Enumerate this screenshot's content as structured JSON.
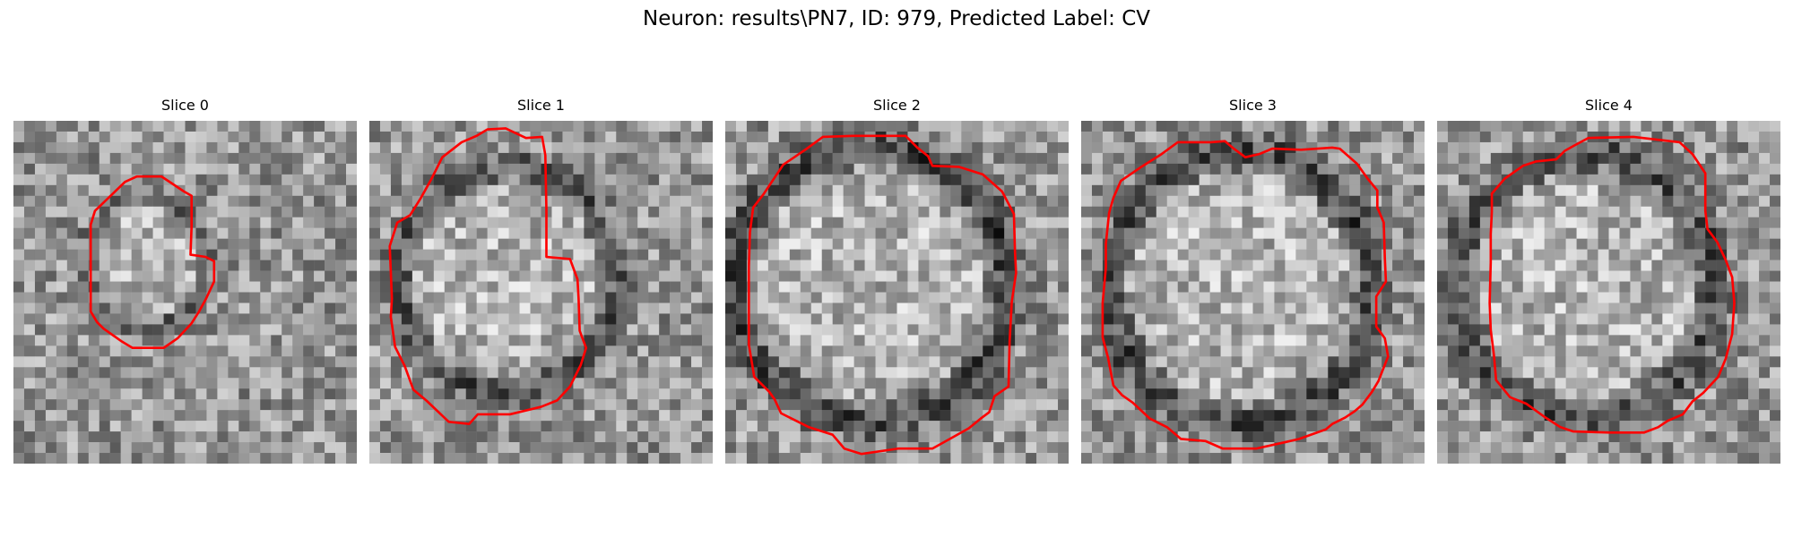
{
  "figure": {
    "title": "Neuron: results\\PN7, ID: 979, Predicted Label: CV",
    "contour_color": "#ff0000"
  },
  "panels": [
    {
      "label": "Slice 0",
      "seed": 11,
      "ring": {
        "cx": 12.4,
        "cy": 13.2,
        "rx": 5.6,
        "ry": 6.3,
        "strength": 55
      },
      "contour": [
        [
          7.6,
          8.4
        ],
        [
          10.4,
          5.7
        ],
        [
          11.5,
          5.2
        ],
        [
          13.8,
          5.2
        ],
        [
          14.4,
          5.6
        ],
        [
          15.9,
          6.6
        ],
        [
          16.6,
          7.0
        ],
        [
          16.6,
          9.9
        ],
        [
          16.5,
          12.5
        ],
        [
          17.9,
          12.7
        ],
        [
          18.7,
          13.1
        ],
        [
          18.7,
          15.0
        ],
        [
          17.9,
          16.7
        ],
        [
          17.3,
          17.8
        ],
        [
          16.6,
          18.9
        ],
        [
          15.3,
          20.3
        ],
        [
          14.0,
          21.2
        ],
        [
          12.3,
          21.2
        ],
        [
          11.1,
          21.2
        ],
        [
          10.1,
          20.6
        ],
        [
          8.4,
          19.4
        ],
        [
          7.8,
          18.8
        ],
        [
          7.2,
          17.8
        ],
        [
          7.2,
          13.2
        ],
        [
          7.2,
          9.7
        ]
      ]
    },
    {
      "label": "Slice 1",
      "seed": 23,
      "ring": {
        "cx": 12.8,
        "cy": 14.8,
        "rx": 10.0,
        "ry": 10.6,
        "strength": 65
      },
      "contour": [
        [
          3.8,
          8.8
        ],
        [
          4.8,
          7.2
        ],
        [
          5.8,
          5.4
        ],
        [
          6.8,
          3.4
        ],
        [
          8.6,
          2.0
        ],
        [
          10.0,
          1.4
        ],
        [
          11.0,
          0.8
        ],
        [
          12.7,
          0.7
        ],
        [
          14.6,
          1.6
        ],
        [
          16.1,
          1.5
        ],
        [
          16.4,
          3.2
        ],
        [
          16.5,
          8.3
        ],
        [
          16.5,
          12.7
        ],
        [
          18.7,
          12.9
        ],
        [
          19.4,
          14.8
        ],
        [
          19.5,
          16.6
        ],
        [
          19.6,
          19.6
        ],
        [
          20.2,
          21.2
        ],
        [
          19.7,
          22.8
        ],
        [
          18.7,
          24.8
        ],
        [
          17.5,
          26.1
        ],
        [
          16.0,
          26.7
        ],
        [
          13.1,
          27.4
        ],
        [
          10.1,
          27.4
        ],
        [
          9.3,
          28.3
        ],
        [
          7.4,
          28.1
        ],
        [
          5.3,
          26.1
        ],
        [
          4.1,
          25.1
        ],
        [
          3.3,
          22.9
        ],
        [
          2.4,
          21.1
        ],
        [
          2.0,
          18.3
        ],
        [
          2.1,
          16.6
        ],
        [
          1.9,
          11.7
        ],
        [
          2.6,
          9.5
        ]
      ]
    },
    {
      "label": "Slice 2",
      "seed": 37,
      "ring": {
        "cx": 13.6,
        "cy": 15.2,
        "rx": 12.8,
        "ry": 12.8,
        "strength": 80
      },
      "contour": [
        [
          3.6,
          6.8
        ],
        [
          5.4,
          4.1
        ],
        [
          7.6,
          2.6
        ],
        [
          9.1,
          1.5
        ],
        [
          11.9,
          1.4
        ],
        [
          16.8,
          1.4
        ],
        [
          17.9,
          2.5
        ],
        [
          18.9,
          3.3
        ],
        [
          19.3,
          4.2
        ],
        [
          21.8,
          4.3
        ],
        [
          24.0,
          5.0
        ],
        [
          25.8,
          6.6
        ],
        [
          26.9,
          8.7
        ],
        [
          27.0,
          12.2
        ],
        [
          27.1,
          14.2
        ],
        [
          26.7,
          16.9
        ],
        [
          26.5,
          20.6
        ],
        [
          26.4,
          24.8
        ],
        [
          25.1,
          25.7
        ],
        [
          24.6,
          27.2
        ],
        [
          23.8,
          27.8
        ],
        [
          22.7,
          28.7
        ],
        [
          21.1,
          29.6
        ],
        [
          19.3,
          30.6
        ],
        [
          16.1,
          30.6
        ],
        [
          12.7,
          31.1
        ],
        [
          11.1,
          30.6
        ],
        [
          10.0,
          29.3
        ],
        [
          7.8,
          28.6
        ],
        [
          5.2,
          27.3
        ],
        [
          4.6,
          26.0
        ],
        [
          4.1,
          25.3
        ],
        [
          2.7,
          23.9
        ],
        [
          2.2,
          20.9
        ],
        [
          2.2,
          17.6
        ],
        [
          2.2,
          13.6
        ],
        [
          2.3,
          10.4
        ],
        [
          2.6,
          8.1
        ]
      ]
    },
    {
      "label": "Slice 3",
      "seed": 49,
      "ring": {
        "cx": 14.8,
        "cy": 15.6,
        "rx": 12.2,
        "ry": 12.8,
        "strength": 75
      },
      "contour": [
        [
          3.7,
          5.6
        ],
        [
          5.6,
          4.3
        ],
        [
          7.5,
          3.1
        ],
        [
          9.0,
          2.0
        ],
        [
          12.1,
          2.0
        ],
        [
          13.4,
          1.9
        ],
        [
          14.1,
          2.5
        ],
        [
          15.3,
          3.4
        ],
        [
          16.6,
          3.1
        ],
        [
          17.8,
          2.6
        ],
        [
          20.5,
          2.7
        ],
        [
          23.4,
          2.5
        ],
        [
          24.1,
          2.6
        ],
        [
          25.7,
          4.0
        ],
        [
          26.7,
          5.4
        ],
        [
          27.6,
          6.5
        ],
        [
          27.6,
          8.1
        ],
        [
          28.2,
          9.5
        ],
        [
          28.3,
          12.8
        ],
        [
          28.4,
          15.0
        ],
        [
          27.5,
          16.4
        ],
        [
          27.5,
          19.2
        ],
        [
          28.3,
          20.3
        ],
        [
          28.6,
          22.0
        ],
        [
          27.7,
          24.3
        ],
        [
          27.1,
          25.3
        ],
        [
          26.2,
          26.5
        ],
        [
          25.5,
          27.1
        ],
        [
          24.6,
          27.7
        ],
        [
          23.4,
          28.3
        ],
        [
          22.8,
          28.8
        ],
        [
          20.3,
          29.7
        ],
        [
          19.0,
          30.0
        ],
        [
          16.3,
          30.6
        ],
        [
          13.2,
          30.6
        ],
        [
          11.6,
          29.9
        ],
        [
          9.3,
          29.7
        ],
        [
          8.0,
          28.6
        ],
        [
          6.4,
          27.8
        ],
        [
          4.8,
          26.3
        ],
        [
          3.8,
          25.6
        ],
        [
          3.0,
          24.7
        ],
        [
          2.5,
          22.1
        ],
        [
          2.0,
          20.2
        ],
        [
          2.0,
          17.0
        ],
        [
          2.3,
          13.7
        ],
        [
          2.3,
          11.5
        ],
        [
          2.6,
          8.6
        ],
        [
          3.0,
          7.2
        ]
      ]
    },
    {
      "label": "Slice 4",
      "seed": 61,
      "ring": {
        "cx": 13.9,
        "cy": 15.4,
        "rx": 12.0,
        "ry": 12.4,
        "strength": 70
      },
      "contour": [
        [
          5.1,
          6.8
        ],
        [
          6.3,
          5.4
        ],
        [
          8.0,
          4.2
        ],
        [
          9.2,
          3.8
        ],
        [
          11.1,
          3.6
        ],
        [
          11.9,
          2.8
        ],
        [
          12.8,
          2.3
        ],
        [
          14.1,
          1.6
        ],
        [
          18.3,
          1.5
        ],
        [
          22.6,
          2.0
        ],
        [
          23.8,
          3.1
        ],
        [
          25.0,
          4.9
        ],
        [
          25.0,
          8.4
        ],
        [
          25.2,
          10.1
        ],
        [
          26.1,
          11.3
        ],
        [
          26.9,
          13.0
        ],
        [
          27.5,
          14.6
        ],
        [
          27.7,
          17.0
        ],
        [
          27.5,
          19.9
        ],
        [
          26.9,
          22.2
        ],
        [
          26.2,
          23.9
        ],
        [
          24.8,
          25.4
        ],
        [
          23.8,
          26.2
        ],
        [
          22.9,
          27.4
        ],
        [
          21.5,
          28.0
        ],
        [
          20.6,
          28.6
        ],
        [
          19.3,
          29.1
        ],
        [
          16.1,
          29.1
        ],
        [
          12.7,
          29.0
        ],
        [
          11.5,
          28.6
        ],
        [
          10.1,
          27.7
        ],
        [
          8.3,
          26.4
        ],
        [
          6.8,
          25.8
        ],
        [
          5.5,
          24.2
        ],
        [
          5.3,
          21.9
        ],
        [
          5.0,
          19.5
        ],
        [
          4.9,
          17.0
        ],
        [
          5.0,
          13.2
        ],
        [
          5.0,
          10.6
        ],
        [
          5.1,
          8.5
        ]
      ]
    }
  ]
}
